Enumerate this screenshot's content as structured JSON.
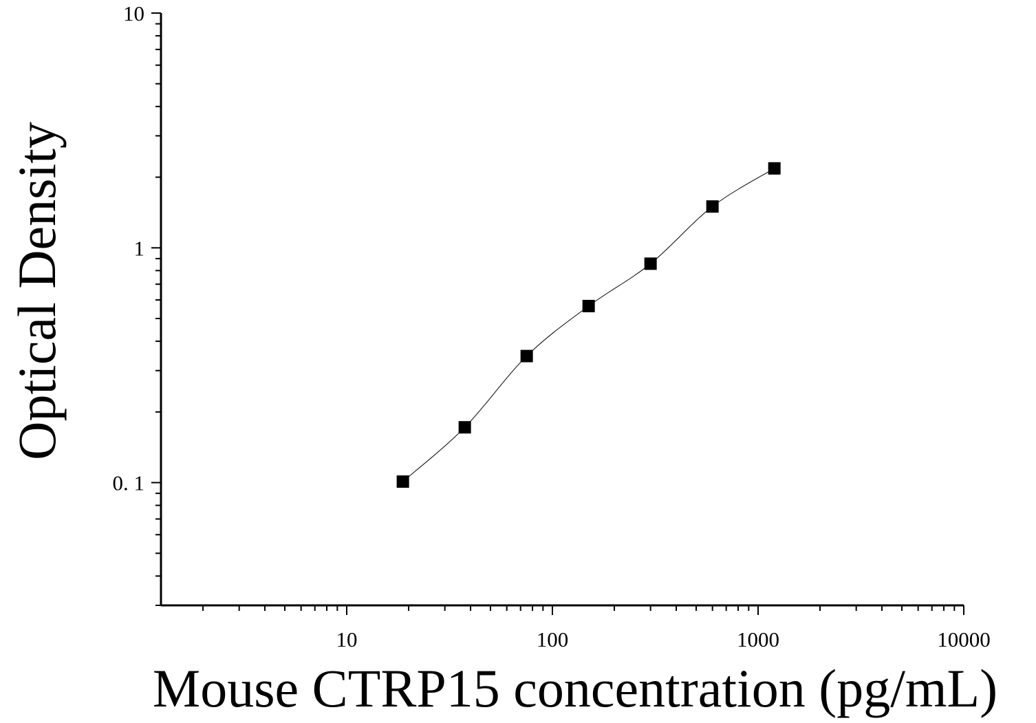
{
  "chart_data": {
    "type": "scatter",
    "title": "",
    "xlabel": "Mouse CTRP15 concentration (pg/mL)",
    "ylabel": "Optical Density",
    "x_scale": "log",
    "y_scale": "log",
    "xlim": [
      1.25,
      10000
    ],
    "ylim": [
      0.03,
      10
    ],
    "x_ticks": [
      {
        "value": 10,
        "label": "10"
      },
      {
        "value": 100,
        "label": "100"
      },
      {
        "value": 1000,
        "label": "1000"
      },
      {
        "value": 10000,
        "label": "10000"
      }
    ],
    "y_ticks": [
      {
        "value": 0.1,
        "label": "0. 1"
      },
      {
        "value": 1,
        "label": "1"
      },
      {
        "value": 10,
        "label": "10"
      }
    ],
    "grid": false,
    "marker": "square",
    "color": "#000000",
    "fit_line": true,
    "series": [
      {
        "x": [
          18.75,
          37.5,
          75,
          150,
          300,
          600,
          1200
        ],
        "y": [
          0.101,
          0.172,
          0.346,
          0.565,
          0.856,
          1.5,
          2.18
        ]
      }
    ]
  }
}
